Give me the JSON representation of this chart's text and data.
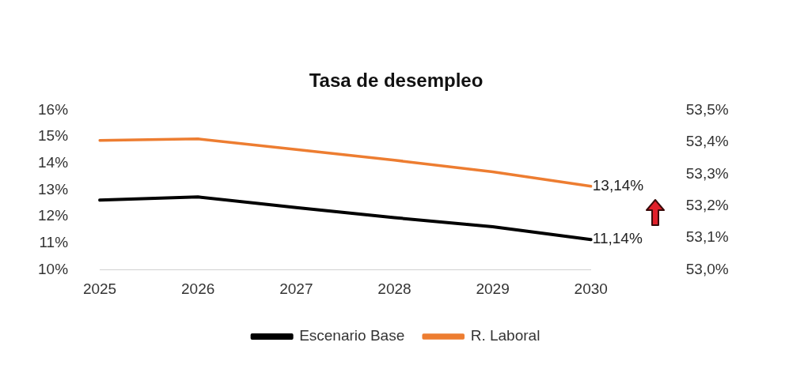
{
  "chart_data": {
    "type": "line",
    "title": "Tasa de desempleo",
    "categories": [
      "2025",
      "2026",
      "2027",
      "2028",
      "2029",
      "2030"
    ],
    "series": [
      {
        "name": "Escenario Base",
        "color": "#000000",
        "values": [
          12.62,
          12.74,
          12.34,
          11.96,
          11.62,
          11.14
        ],
        "value_labels": [
          null,
          null,
          null,
          null,
          null,
          "11,14%"
        ]
      },
      {
        "name": "R. Laboral",
        "color": "#ed7d31",
        "values": [
          14.86,
          14.92,
          14.52,
          14.12,
          13.68,
          13.14
        ],
        "value_labels": [
          null,
          null,
          null,
          null,
          null,
          "13,14%"
        ]
      }
    ],
    "ylim": [
      10,
      16
    ],
    "yticks": [
      {
        "value": 10,
        "label": "10%"
      },
      {
        "value": 11,
        "label": "11%"
      },
      {
        "value": 12,
        "label": "12%"
      },
      {
        "value": 13,
        "label": "13%"
      },
      {
        "value": 14,
        "label": "14%"
      },
      {
        "value": 15,
        "label": "15%"
      },
      {
        "value": 16,
        "label": "16%"
      }
    ],
    "y2lim": [
      53.0,
      53.5
    ],
    "y2ticks": [
      {
        "value": 53.0,
        "label": "53,0%"
      },
      {
        "value": 53.1,
        "label": "53,1%"
      },
      {
        "value": 53.2,
        "label": "53,2%"
      },
      {
        "value": 53.3,
        "label": "53,3%"
      },
      {
        "value": 53.4,
        "label": "53,4%"
      },
      {
        "value": 53.5,
        "label": "53,5%"
      }
    ],
    "grid": false,
    "legend": "bottom",
    "marker": "none",
    "line_style": "solid"
  }
}
